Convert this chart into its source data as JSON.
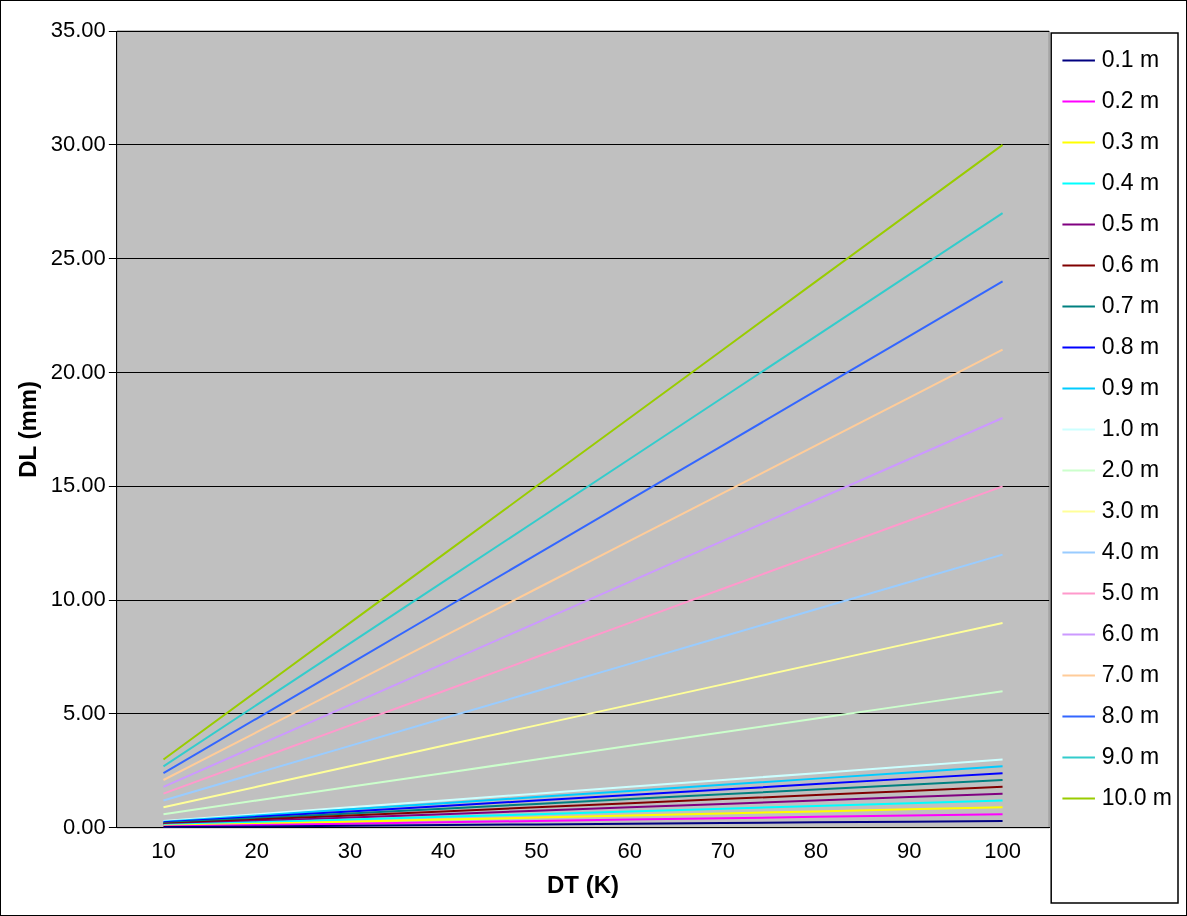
{
  "chart_data": {
    "type": "line",
    "xlabel": "DT (K)",
    "ylabel": "DL (mm)",
    "categories": [
      "10",
      "20",
      "30",
      "40",
      "50",
      "60",
      "70",
      "80",
      "90",
      "100"
    ],
    "ylim": [
      0,
      35
    ],
    "yticks": [
      {
        "value": 0,
        "label": "0.00"
      },
      {
        "value": 5,
        "label": "5.00"
      },
      {
        "value": 10,
        "label": "10.00"
      },
      {
        "value": 15,
        "label": "15.00"
      },
      {
        "value": 20,
        "label": "20.00"
      },
      {
        "value": 25,
        "label": "25.00"
      },
      {
        "value": 30,
        "label": "30.00"
      },
      {
        "value": 35,
        "label": "35.00"
      }
    ],
    "grid": "y",
    "legend": "right",
    "marker": "none",
    "line_style": "solid",
    "series": [
      {
        "name": "0.1 m",
        "color": "#000080",
        "values": [
          0.03,
          0.06,
          0.09,
          0.12,
          0.15,
          0.18,
          0.21,
          0.24,
          0.27,
          0.3
        ]
      },
      {
        "name": "0.2 m",
        "color": "#ff00ff",
        "values": [
          0.06,
          0.12,
          0.18,
          0.24,
          0.3,
          0.36,
          0.42,
          0.48,
          0.54,
          0.6
        ]
      },
      {
        "name": "0.3 m",
        "color": "#ffff00",
        "values": [
          0.09,
          0.18,
          0.27,
          0.36,
          0.45,
          0.54,
          0.63,
          0.72,
          0.81,
          0.9
        ]
      },
      {
        "name": "0.4 m",
        "color": "#00ffff",
        "values": [
          0.12,
          0.24,
          0.36,
          0.48,
          0.6,
          0.72,
          0.84,
          0.96,
          1.08,
          1.2
        ]
      },
      {
        "name": "0.5 m",
        "color": "#800080",
        "values": [
          0.15,
          0.3,
          0.45,
          0.6,
          0.75,
          0.9,
          1.05,
          1.2,
          1.35,
          1.5
        ]
      },
      {
        "name": "0.6 m",
        "color": "#800000",
        "values": [
          0.18,
          0.36,
          0.54,
          0.72,
          0.9,
          1.08,
          1.26,
          1.44,
          1.62,
          1.8
        ]
      },
      {
        "name": "0.7 m",
        "color": "#008080",
        "values": [
          0.21,
          0.42,
          0.63,
          0.84,
          1.05,
          1.26,
          1.47,
          1.68,
          1.89,
          2.1
        ]
      },
      {
        "name": "0.8 m",
        "color": "#0000ff",
        "values": [
          0.24,
          0.48,
          0.72,
          0.96,
          1.2,
          1.44,
          1.68,
          1.92,
          2.16,
          2.4
        ]
      },
      {
        "name": "0.9 m",
        "color": "#00ccff",
        "values": [
          0.27,
          0.54,
          0.81,
          1.08,
          1.35,
          1.62,
          1.89,
          2.16,
          2.43,
          2.7
        ]
      },
      {
        "name": "1.0 m",
        "color": "#ccffff",
        "values": [
          0.3,
          0.6,
          0.9,
          1.2,
          1.5,
          1.8,
          2.1,
          2.4,
          2.7,
          3
        ]
      },
      {
        "name": "2.0 m",
        "color": "#ccffcc",
        "values": [
          0.6,
          1.2,
          1.8,
          2.4,
          3,
          3.6,
          4.2,
          4.8,
          5.4,
          6
        ]
      },
      {
        "name": "3.0 m",
        "color": "#ffff99",
        "values": [
          0.9,
          1.8,
          2.7,
          3.6,
          4.5,
          5.4,
          6.3,
          7.2,
          8.1,
          9
        ]
      },
      {
        "name": "4.0 m",
        "color": "#99ccff",
        "values": [
          1.2,
          2.4,
          3.6,
          4.8,
          6,
          7.2,
          8.4,
          9.6,
          10.8,
          12
        ]
      },
      {
        "name": "5.0 m",
        "color": "#ff99cc",
        "values": [
          1.5,
          3,
          4.5,
          6,
          7.5,
          9,
          10.5,
          12,
          13.5,
          15
        ]
      },
      {
        "name": "6.0 m",
        "color": "#cc99ff",
        "values": [
          1.8,
          3.6,
          5.4,
          7.2,
          9,
          10.8,
          12.6,
          14.4,
          16.2,
          18
        ]
      },
      {
        "name": "7.0 m",
        "color": "#ffcc99",
        "values": [
          2.1,
          4.2,
          6.3,
          8.4,
          10.5,
          12.6,
          14.7,
          16.8,
          18.9,
          21
        ]
      },
      {
        "name": "8.0 m",
        "color": "#3366ff",
        "values": [
          2.4,
          4.8,
          7.2,
          9.6,
          12,
          14.4,
          16.8,
          19.2,
          21.6,
          24
        ]
      },
      {
        "name": "9.0 m",
        "color": "#33cccc",
        "values": [
          2.7,
          5.4,
          8.1,
          10.8,
          13.5,
          16.2,
          18.9,
          21.6,
          24.3,
          27
        ]
      },
      {
        "name": "10.0 m",
        "color": "#99cc00",
        "values": [
          3,
          6,
          9,
          12,
          15,
          18,
          21,
          24,
          27,
          30
        ]
      }
    ]
  }
}
